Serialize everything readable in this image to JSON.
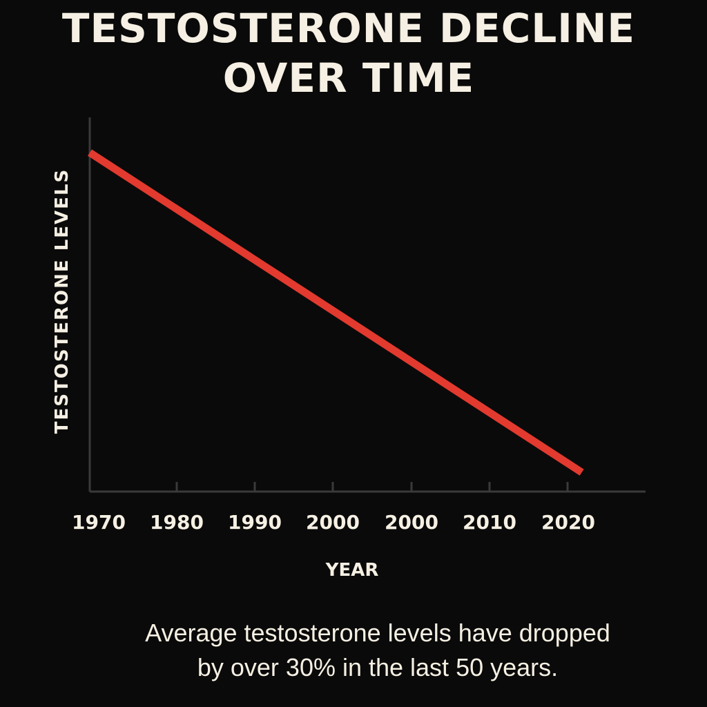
{
  "chart_data": {
    "type": "line",
    "title": [
      "TESTOSTERONE DECLINE",
      "OVER TIME"
    ],
    "xlabel": "YEAR",
    "ylabel": "TESTOSTERONE LEVELS",
    "x_tick_labels": [
      "1970",
      "1980",
      "1990",
      "2000",
      "2000",
      "2010",
      "2020"
    ],
    "series": [
      {
        "x": [
          1970,
          2024
        ],
        "y": [
          100,
          0
        ],
        "color": "#e23a2f"
      }
    ],
    "x_axis_range": [
      1970,
      2031
    ],
    "y_axis_range": [
      -6,
      111
    ],
    "y_ticks": [],
    "grid": false,
    "legend": "none"
  },
  "caption": [
    "Average testosterone levels have dropped",
    "by over 30% in the last 50 years."
  ],
  "colors": {
    "background": "#0b0a0a",
    "text": "#f5f0e3",
    "axis": "#3a3a3a",
    "line": "#e23a2f"
  }
}
